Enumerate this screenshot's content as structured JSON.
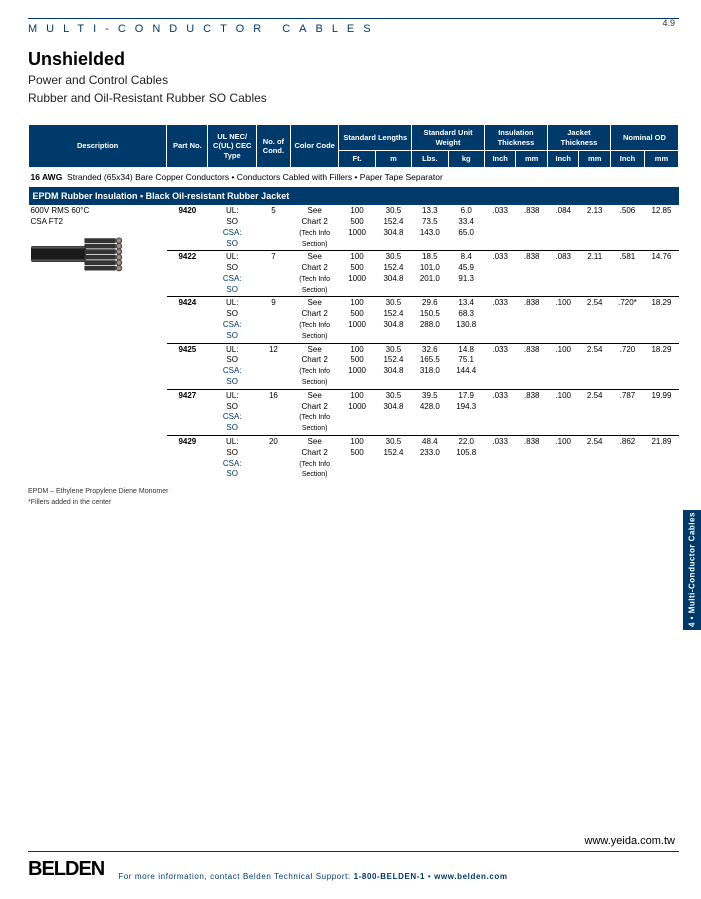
{
  "header": {
    "category": "MULTI-CONDUCTOR CABLES",
    "pagenum": "4.9",
    "title": "Unshielded",
    "sub1": "Power and Control Cables",
    "sub2": "Rubber and Oil-Resistant Rubber SO Cables"
  },
  "table": {
    "headers": {
      "desc": "Description",
      "part": "Part No.",
      "ul": "UL NEC/\nC(UL) CEC\nType",
      "cond": "No.\nof\nCond.",
      "color": "Color\nCode",
      "stdlen": "Standard Lengths",
      "ft": "Ft.",
      "m": "m",
      "stdwt": "Standard\nUnit Weight",
      "lbs": "Lbs.",
      "kg": "kg",
      "ins": "Insulation\nThickness",
      "jkt": "Jacket\nThickness",
      "nom": "Nominal OD",
      "in": "Inch",
      "mm": "mm"
    },
    "awg": "16 AWG",
    "awgdesc": "Stranded (65x34) Bare Copper Conductors • Conductors Cabled with Fillers • Paper Tape Separator",
    "band": "EPDM Rubber Insulation • Black Oil-resistant Rubber Jacket",
    "desc": "600V RMS 60°C\nCSA FT2",
    "chart": "See\nChart 2\n(Tech Info\nSection)",
    "ultype": "UL:\nSO",
    "csatype": "CSA:\nSO",
    "rows": [
      {
        "part": "9420",
        "cond": "5",
        "ft": [
          "100",
          "500",
          "1000"
        ],
        "m": [
          "30.5",
          "152.4",
          "304.8"
        ],
        "lbs": [
          "13.3",
          "73.5",
          "143.0"
        ],
        "kg": [
          "6.0",
          "33.4",
          "65.0"
        ],
        "ins_in": ".033",
        "ins_mm": ".838",
        "jkt_in": ".084",
        "jkt_mm": "2.13",
        "od_in": ".506",
        "od_mm": "12.85"
      },
      {
        "part": "9422",
        "cond": "7",
        "ft": [
          "100",
          "500",
          "1000"
        ],
        "m": [
          "30.5",
          "152.4",
          "304.8"
        ],
        "lbs": [
          "18.5",
          "101.0",
          "201.0"
        ],
        "kg": [
          "8.4",
          "45.9",
          "91.3"
        ],
        "ins_in": ".033",
        "ins_mm": ".838",
        "jkt_in": ".083",
        "jkt_mm": "2.11",
        "od_in": ".581",
        "od_mm": "14.76"
      },
      {
        "part": "9424",
        "cond": "9",
        "ft": [
          "100",
          "500",
          "1000"
        ],
        "m": [
          "30.5",
          "152.4",
          "304.8"
        ],
        "lbs": [
          "29.6",
          "150.5",
          "288.0"
        ],
        "kg": [
          "13.4",
          "68.3",
          "130.8"
        ],
        "ins_in": ".033",
        "ins_mm": ".838",
        "jkt_in": ".100",
        "jkt_mm": "2.54",
        "od_in": ".720*",
        "od_mm": "18.29"
      },
      {
        "part": "9425",
        "cond": "12",
        "ft": [
          "100",
          "500",
          "1000"
        ],
        "m": [
          "30.5",
          "152.4",
          "304.8"
        ],
        "lbs": [
          "32.6",
          "165.5",
          "318.0"
        ],
        "kg": [
          "14.8",
          "75.1",
          "144.4"
        ],
        "ins_in": ".033",
        "ins_mm": ".838",
        "jkt_in": ".100",
        "jkt_mm": "2.54",
        "od_in": ".720",
        "od_mm": "18.29"
      },
      {
        "part": "9427",
        "cond": "16",
        "ft": [
          "100",
          "1000"
        ],
        "m": [
          "30.5",
          "304.8"
        ],
        "lbs": [
          "39.5",
          "428.0"
        ],
        "kg": [
          "17.9",
          "194.3"
        ],
        "ins_in": ".033",
        "ins_mm": ".838",
        "jkt_in": ".100",
        "jkt_mm": "2.54",
        "od_in": ".787",
        "od_mm": "19.99"
      },
      {
        "part": "9429",
        "cond": "20",
        "ft": [
          "100",
          "500"
        ],
        "m": [
          "30.5",
          "152.4"
        ],
        "lbs": [
          "48.4",
          "233.0"
        ],
        "kg": [
          "22.0",
          "105.8"
        ],
        "ins_in": ".033",
        "ins_mm": ".838",
        "jkt_in": ".100",
        "jkt_mm": "2.54",
        "od_in": ".862",
        "od_mm": "21.89"
      }
    ]
  },
  "footnotes": {
    "a": "EPDM – Ethylene Propylene Diene Monomer",
    "b": "*Fillers added in the center"
  },
  "sidetab": "4 • Multi-Conductor Cables",
  "url": "www.yeida.com.tw",
  "footer": {
    "logo": "BELDEN",
    "text1": "For more information, contact Belden Technical Support: ",
    "phone": "1-800-BELDEN-1",
    "text2": " • ",
    "site": "www.belden.com"
  }
}
